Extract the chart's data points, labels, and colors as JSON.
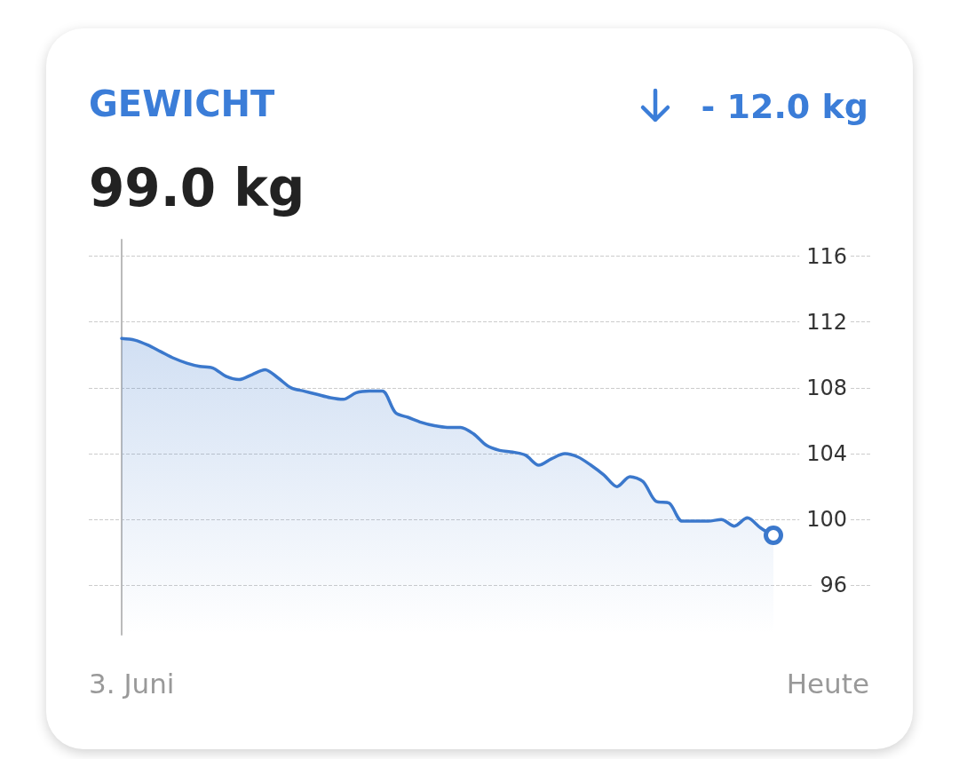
{
  "chart_data": {
    "type": "area",
    "title": "GEWICHT",
    "subtitle": "99.0 kg",
    "annotations": [
      "- 12.0 kg",
      "3. Juni",
      "Heute"
    ],
    "categories": [
      null,
      null,
      null,
      null,
      null,
      null,
      null,
      null,
      null,
      null,
      null,
      null,
      null,
      null,
      null,
      null,
      null,
      null,
      null,
      null,
      null,
      null,
      null,
      null,
      null,
      null,
      null,
      null,
      null,
      null,
      null,
      null,
      null,
      null,
      null,
      null,
      null,
      null,
      null,
      null,
      null,
      null,
      null,
      null,
      null,
      null,
      null,
      null,
      null,
      null,
      null
    ],
    "series": [
      {
        "color": "#3b78cc",
        "values": [
          111.0,
          110.9,
          110.6,
          110.2,
          109.8,
          109.5,
          109.3,
          109.2,
          108.7,
          108.5,
          108.8,
          109.1,
          108.6,
          108.0,
          107.8,
          107.6,
          107.4,
          107.3,
          107.7,
          107.8,
          107.8,
          106.5,
          106.2,
          105.9,
          105.7,
          105.6,
          105.6,
          105.2,
          104.5,
          104.2,
          104.1,
          103.9,
          103.3,
          103.7,
          104.0,
          103.8,
          103.3,
          102.7,
          102.0,
          102.6,
          102.3,
          101.1,
          101.0,
          99.9,
          99.9,
          99.9,
          100.0,
          99.6,
          100.1,
          99.5,
          99.0
        ]
      }
    ],
    "ylim": [
      93,
      117
    ],
    "yticks": [
      96,
      100,
      104,
      108,
      112,
      116
    ],
    "grid": "y",
    "marker": "none",
    "line_style": "solid"
  }
}
